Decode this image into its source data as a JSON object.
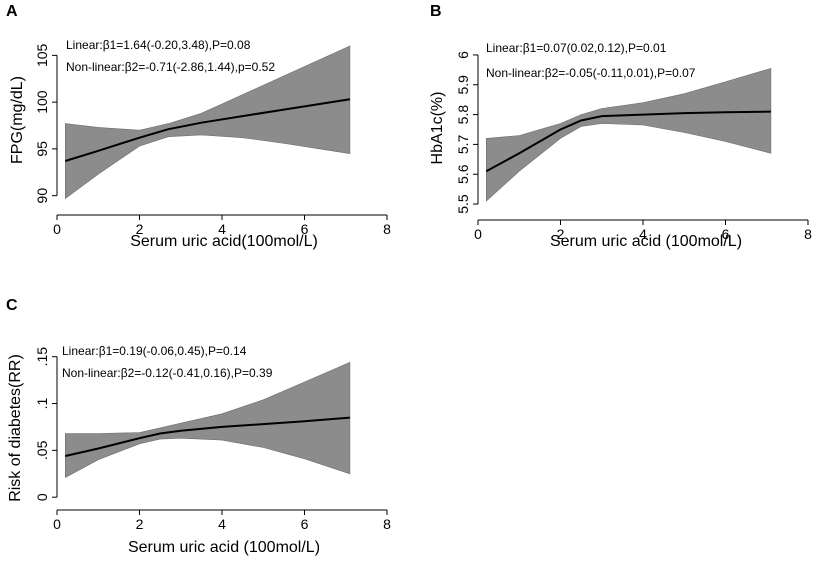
{
  "chart_data": [
    {
      "panel": "A",
      "type": "line",
      "xlabel": "Serum uric acid(100mol/L)",
      "ylabel": "FPG(mg/dL)",
      "xlim": [
        0,
        8
      ],
      "ylim": [
        89,
        106
      ],
      "xticks": [
        0,
        2,
        4,
        6,
        8
      ],
      "yticks": [
        90,
        95,
        100,
        105
      ],
      "ytick_rotated": true,
      "annotations": [
        "Linear:β1=1.64(-0.20,3.48),P=0.08",
        "Non-linear:β2=-0.71(-2.86,1.44),p=0.52"
      ],
      "series": [
        {
          "name": "fit",
          "x": [
            0.2,
            1,
            2,
            2.7,
            3.5,
            4.5,
            5.5,
            7.1
          ],
          "y": [
            93.7,
            94.8,
            96.2,
            97.1,
            97.8,
            98.5,
            99.2,
            100.3
          ]
        },
        {
          "name": "lower",
          "x": [
            0.2,
            1,
            2,
            2.7,
            3.5,
            4.5,
            5.5,
            7.1
          ],
          "y": [
            89.7,
            92.3,
            95.3,
            96.3,
            96.5,
            96.2,
            95.6,
            94.5
          ]
        },
        {
          "name": "upper",
          "x": [
            0.2,
            1,
            2,
            2.7,
            3.5,
            4.5,
            5.5,
            7.1
          ],
          "y": [
            97.7,
            97.3,
            97.0,
            97.7,
            98.8,
            100.8,
            102.8,
            106.0
          ]
        }
      ]
    },
    {
      "panel": "B",
      "type": "line",
      "xlabel": "Serum uric acid (100mol/L)",
      "ylabel": "HbA1c(%)",
      "xlim": [
        0,
        8
      ],
      "ylim": [
        5.48,
        6.03
      ],
      "xticks": [
        0,
        2,
        4,
        6,
        8
      ],
      "yticks": [
        5.5,
        5.6,
        5.7,
        5.8,
        5.9,
        6
      ],
      "ytick_labels": [
        "5.5",
        "5.6",
        "5.7",
        "5.8",
        "5.9",
        "6"
      ],
      "ytick_rotated": true,
      "annotations": [
        "Linear:β1=0.07(0.02,0.12),P=0.01",
        "Non-linear:β2=-0.05(-0.11,0.01),P=0.07"
      ],
      "series": [
        {
          "name": "fit",
          "x": [
            0.2,
            1,
            2,
            2.5,
            3,
            4,
            5,
            6,
            7.1
          ],
          "y": [
            5.61,
            5.67,
            5.75,
            5.78,
            5.795,
            5.8,
            5.805,
            5.808,
            5.81
          ]
        },
        {
          "name": "lower",
          "x": [
            0.2,
            1,
            2,
            2.5,
            3,
            4,
            5,
            6,
            7.1
          ],
          "y": [
            5.51,
            5.61,
            5.72,
            5.76,
            5.77,
            5.765,
            5.74,
            5.71,
            5.67
          ]
        },
        {
          "name": "upper",
          "x": [
            0.2,
            1,
            2,
            2.5,
            3,
            4,
            5,
            6,
            7.1
          ],
          "y": [
            5.72,
            5.73,
            5.77,
            5.8,
            5.82,
            5.84,
            5.87,
            5.91,
            5.955
          ]
        }
      ]
    },
    {
      "panel": "C",
      "type": "line",
      "xlabel": "Serum uric acid (100mol/L)",
      "ylabel": "Risk of diabetes(RR)",
      "xlim": [
        0,
        8
      ],
      "ylim": [
        -0.003,
        0.155
      ],
      "xticks": [
        0,
        2,
        4,
        6,
        8
      ],
      "yticks": [
        0,
        0.05,
        0.1,
        0.15
      ],
      "ytick_labels": [
        "0",
        ".05",
        ".1",
        ".15"
      ],
      "ytick_rotated": true,
      "annotations": [
        "Linear:β1=0.19(-0.06,0.45),P=0.14",
        "Non-linear:β2=-0.12(-0.41,0.16),P=0.39"
      ],
      "series": [
        {
          "name": "fit",
          "x": [
            0.2,
            1,
            2,
            2.5,
            3,
            4,
            5,
            6,
            7.1
          ],
          "y": [
            0.044,
            0.052,
            0.063,
            0.068,
            0.071,
            0.075,
            0.078,
            0.081,
            0.085
          ]
        },
        {
          "name": "lower",
          "x": [
            0.2,
            1,
            2,
            2.5,
            3,
            4,
            5,
            6,
            7.1
          ],
          "y": [
            0.021,
            0.04,
            0.057,
            0.062,
            0.063,
            0.061,
            0.053,
            0.041,
            0.025
          ]
        },
        {
          "name": "upper",
          "x": [
            0.2,
            1,
            2,
            2.5,
            3,
            4,
            5,
            6,
            7.1
          ],
          "y": [
            0.068,
            0.068,
            0.069,
            0.074,
            0.079,
            0.089,
            0.104,
            0.123,
            0.144
          ]
        }
      ]
    }
  ]
}
